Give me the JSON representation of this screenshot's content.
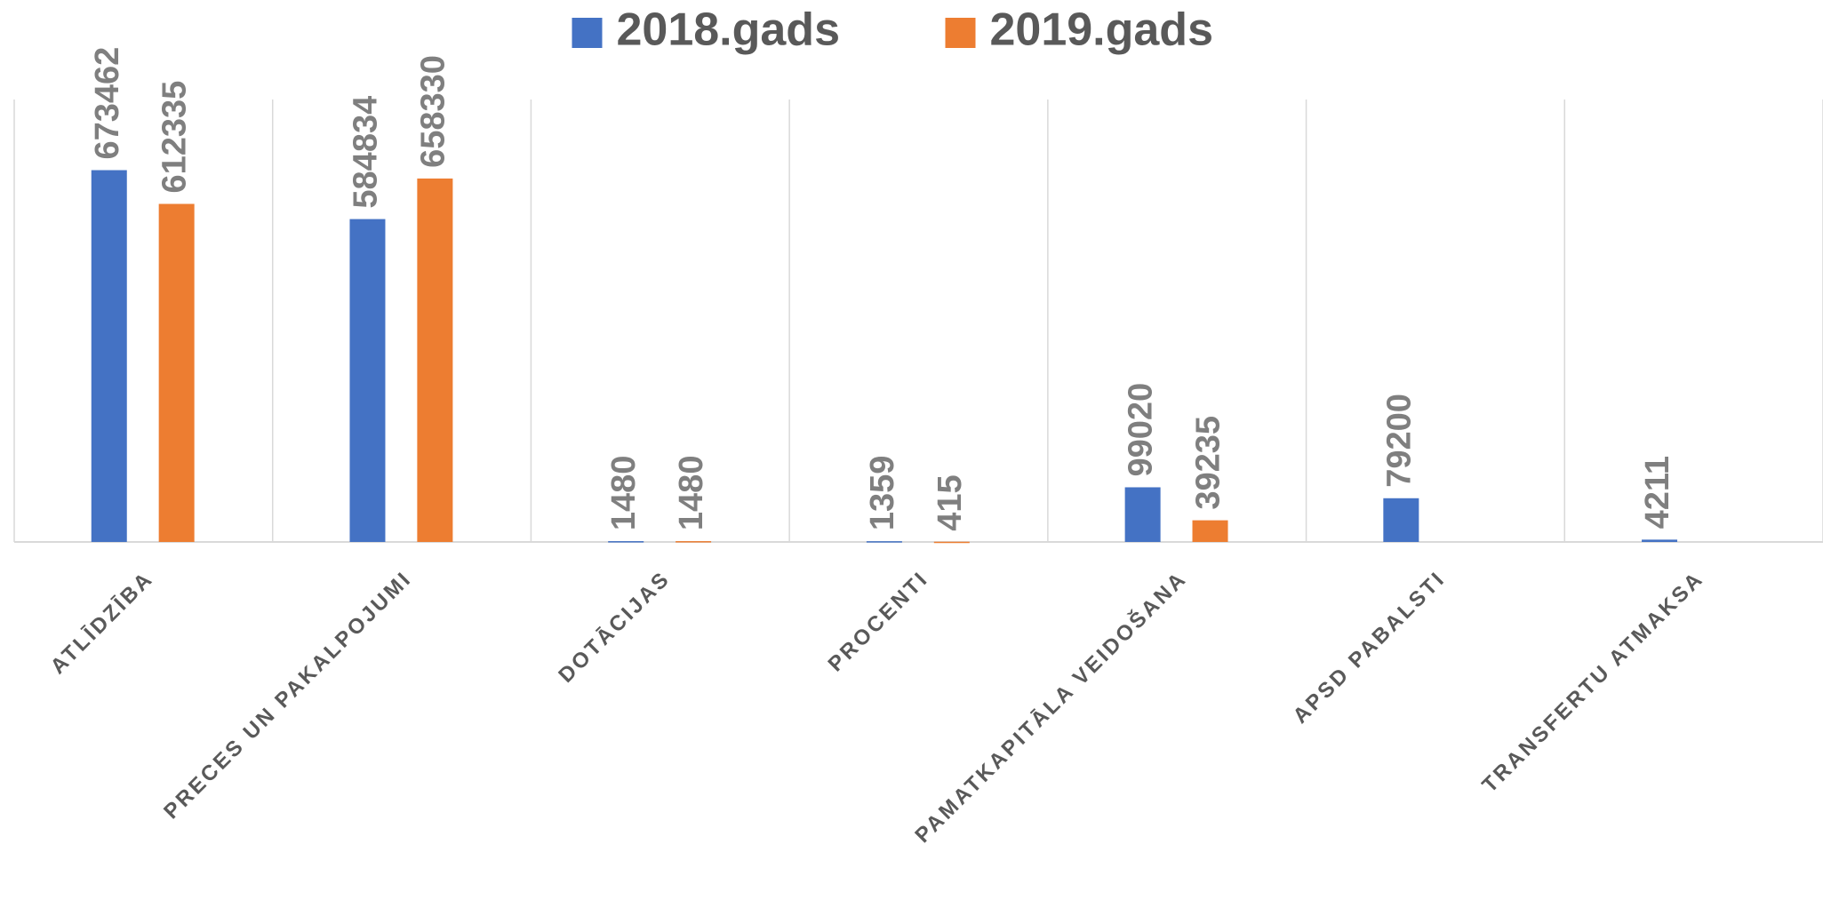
{
  "chart_data": {
    "type": "bar",
    "categories": [
      "ATLĪDZĪBA",
      "PRECES UN PAKALPOJUMI",
      "DOTĀCIJAS",
      "PROCENTI",
      "PAMATKAPITĀLA VEIDOŠANA",
      "APSD PABALSTI",
      "TRANSFERTU ATMAKSA"
    ],
    "series": [
      {
        "name": "2018.gads",
        "color": "#4472c4",
        "values": [
          673462,
          584834,
          1480,
          1359,
          99020,
          79200,
          4211
        ]
      },
      {
        "name": "2019.gads",
        "color": "#ed7d31",
        "values": [
          612335,
          658330,
          1480,
          415,
          39235,
          null,
          null
        ]
      }
    ],
    "legend": "top",
    "grid": true
  }
}
